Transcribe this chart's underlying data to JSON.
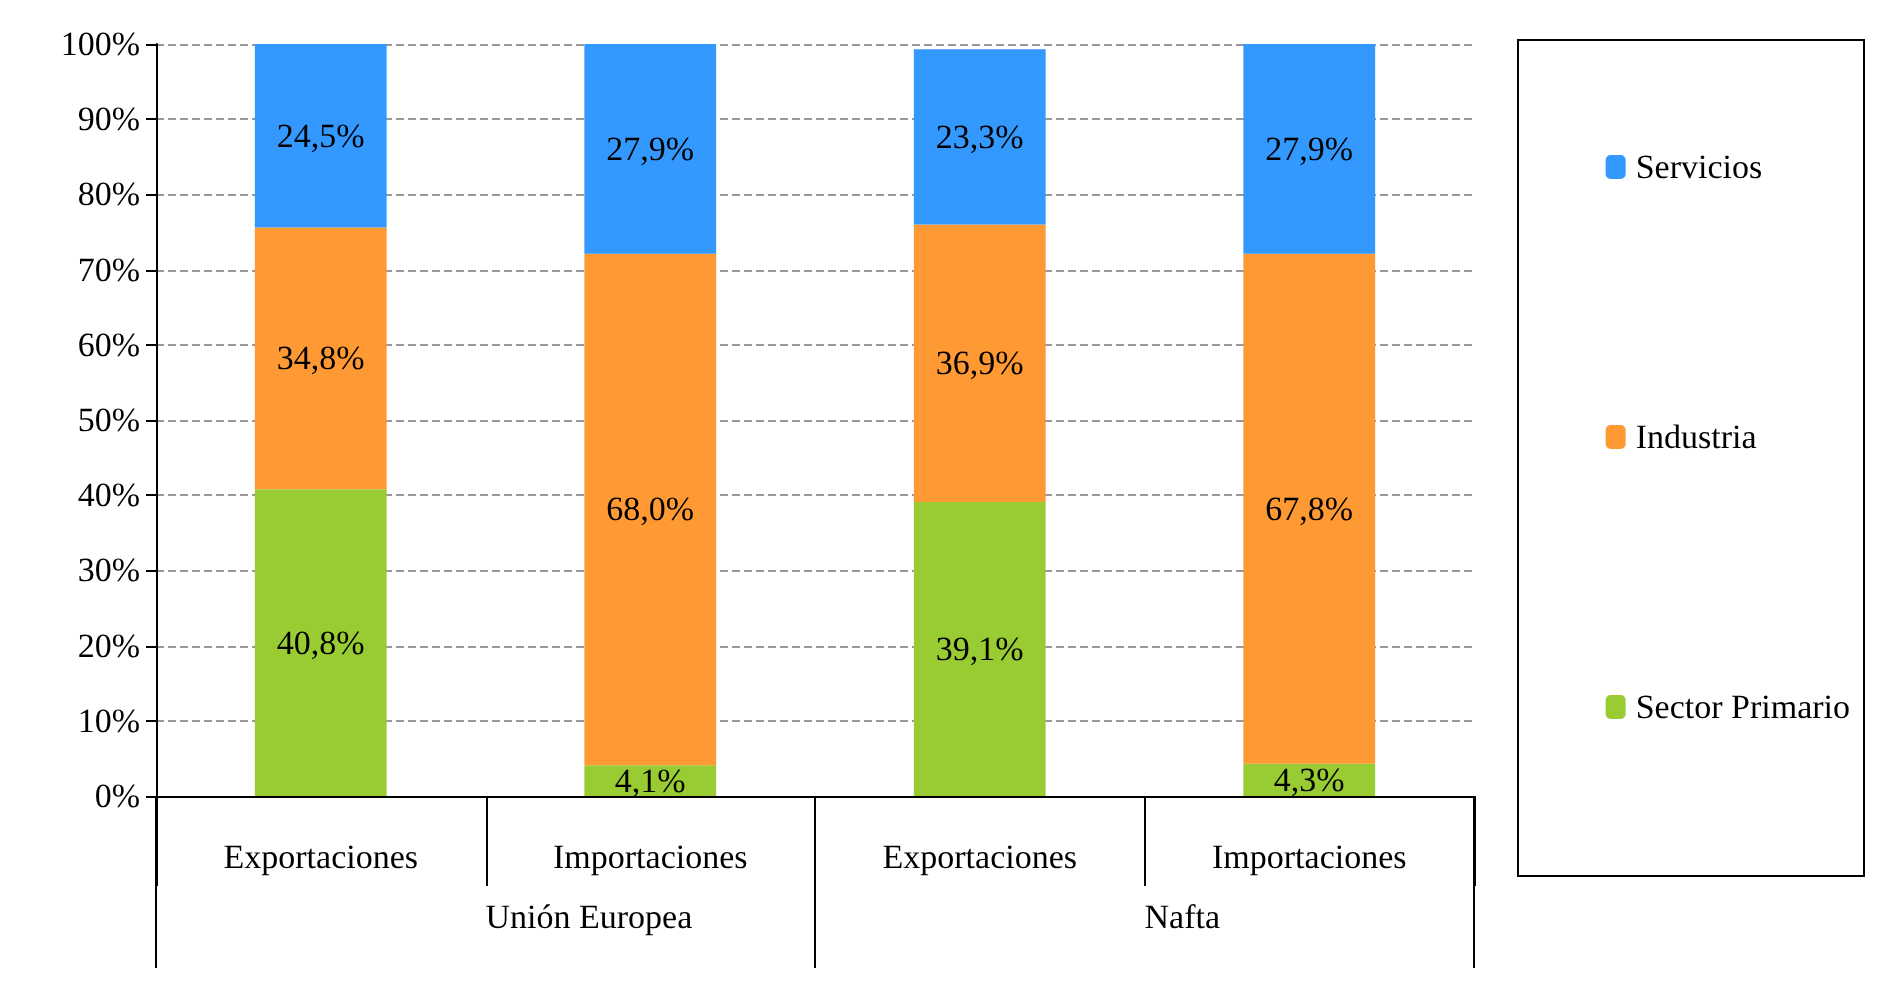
{
  "chart_data": {
    "type": "bar",
    "stacked": true,
    "categories": [
      "Exportaciones",
      "Importaciones",
      "Exportaciones",
      "Importaciones"
    ],
    "annotations": [
      "Unión Europea",
      "Nafta"
    ],
    "series": [
      {
        "name": "Sector Primario",
        "color": "#99cc33",
        "values": [
          40.8,
          4.1,
          39.1,
          4.3
        ],
        "value_labels": [
          "40,8%",
          "4,1%",
          "39,1%",
          "4,3%"
        ]
      },
      {
        "name": "Industria",
        "color": "#ff9933",
        "values": [
          34.8,
          68.0,
          36.9,
          67.8
        ],
        "value_labels": [
          "34,8%",
          "68,0%",
          "36,9%",
          "67,8%"
        ]
      },
      {
        "name": "Servicios",
        "color": "#3399ff",
        "values": [
          24.5,
          27.9,
          23.3,
          27.9
        ],
        "value_labels": [
          "24,5%",
          "27,9%",
          "23,3%",
          "27,9%"
        ]
      }
    ],
    "ylim": [
      0,
      100
    ],
    "yticks": [
      {
        "value": 0,
        "label": "0%"
      },
      {
        "value": 10,
        "label": "10%"
      },
      {
        "value": 20,
        "label": "20%"
      },
      {
        "value": 30,
        "label": "30%"
      },
      {
        "value": 40,
        "label": "40%"
      },
      {
        "value": 50,
        "label": "50%"
      },
      {
        "value": 60,
        "label": "60%"
      },
      {
        "value": 70,
        "label": "70%"
      },
      {
        "value": 80,
        "label": "80%"
      },
      {
        "value": 90,
        "label": "90%"
      },
      {
        "value": 100,
        "label": "100%"
      }
    ],
    "grid": "y",
    "legend": "right"
  }
}
